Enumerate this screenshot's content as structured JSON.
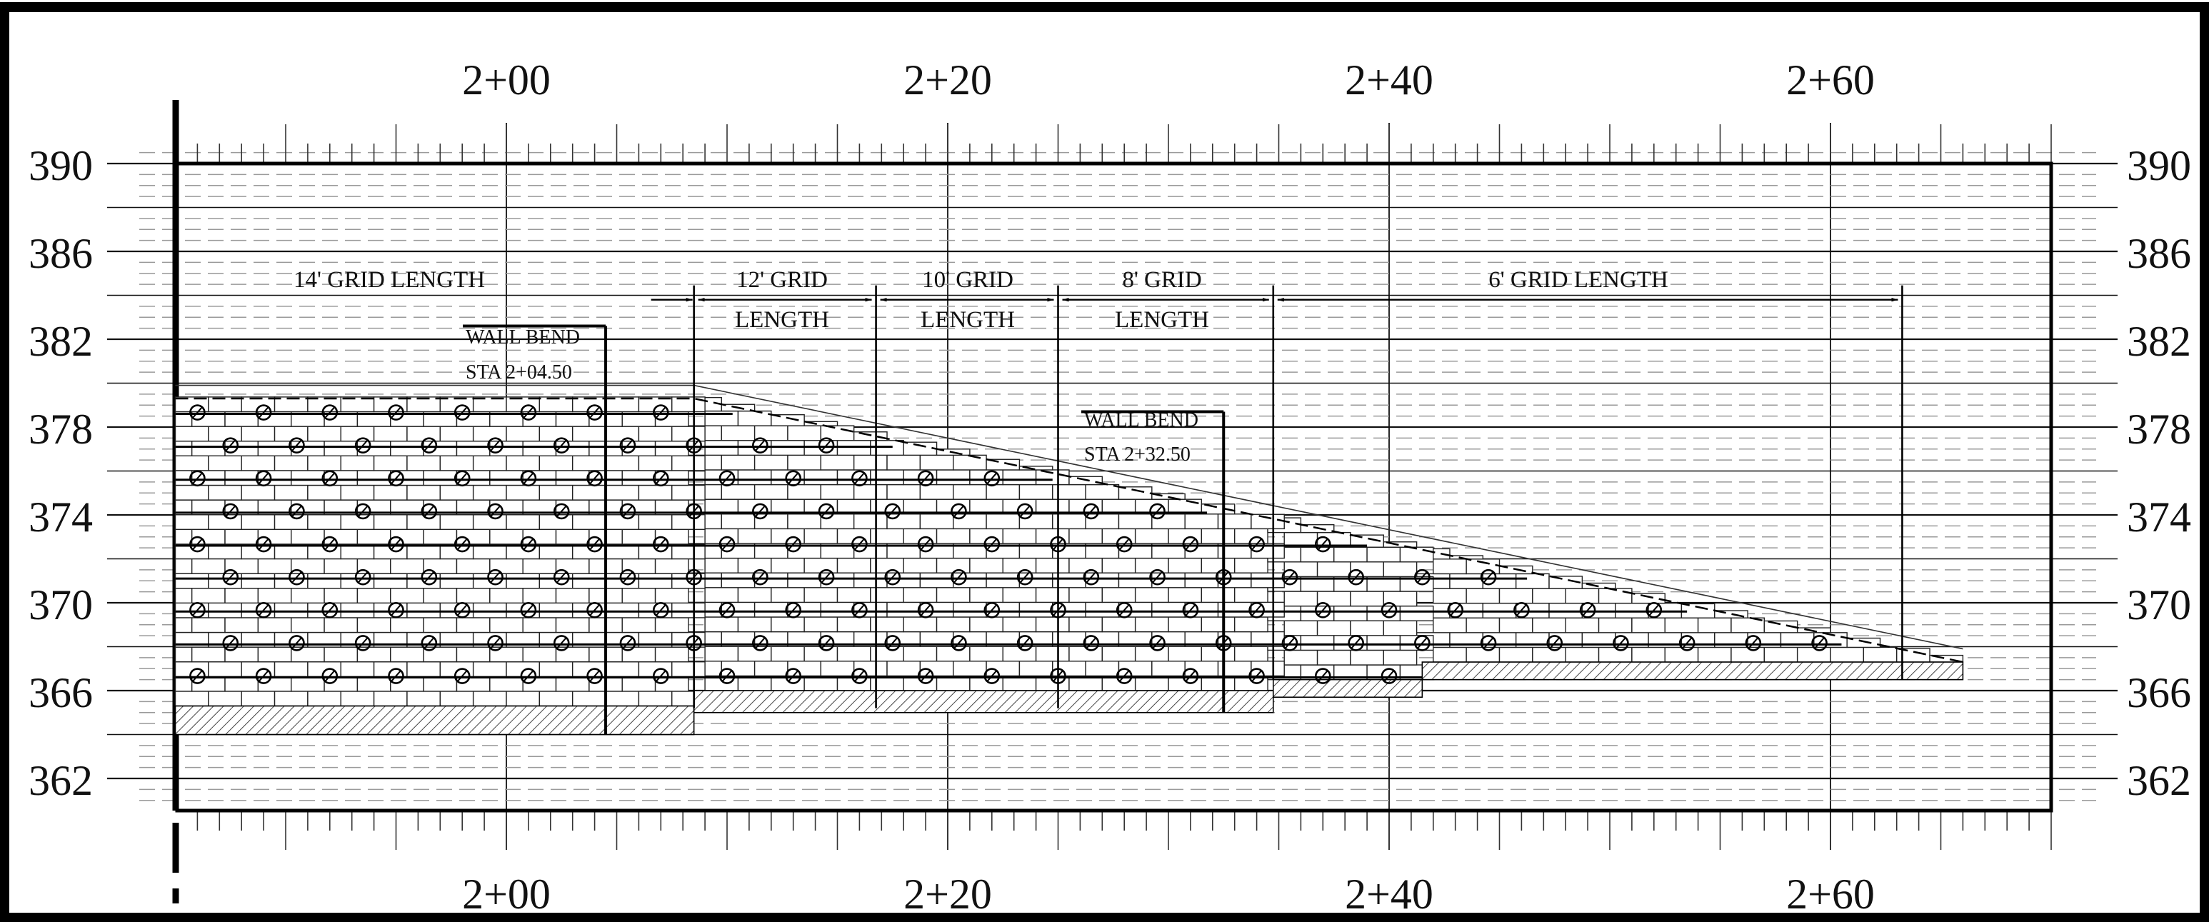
{
  "drawing": {
    "type": "retaining wall elevation (grid reinforcement layout)",
    "elevation_labels": [
      "390",
      "386",
      "382",
      "378",
      "374",
      "370",
      "366",
      "362"
    ],
    "elevations": [
      390,
      386,
      382,
      378,
      374,
      370,
      366,
      362
    ],
    "station_labels": [
      "2+00",
      "2+20",
      "2+40",
      "2+60"
    ],
    "stations_ft": [
      200,
      220,
      240,
      260
    ],
    "grid_zones": [
      {
        "line1": "14' GRID LENGTH",
        "line2": "",
        "sta_start": 185,
        "sta_end": 208.5
      },
      {
        "line1": "12' GRID",
        "line2": "LENGTH",
        "sta_start": 208.5,
        "sta_end": 216.75
      },
      {
        "line1": "10' GRID",
        "line2": "LENGTH",
        "sta_start": 216.75,
        "sta_end": 225
      },
      {
        "line1": "8' GRID",
        "line2": "LENGTH",
        "sta_start": 225,
        "sta_end": 234.75
      },
      {
        "line1": "6' GRID LENGTH",
        "line2": "",
        "sta_start": 234.75,
        "sta_end": 263.25
      }
    ],
    "wall_bends": [
      {
        "title": "WALL BEND",
        "station": "STA 2+04.50",
        "sta": 204.5,
        "label_top_el": 382,
        "base_el": 364
      },
      {
        "title": "WALL BEND",
        "station": "STA 2+32.50",
        "sta": 232.5,
        "label_top_el": 377,
        "base_el": 365
      }
    ],
    "wall_top_profile": [
      [
        185,
        379.3
      ],
      [
        208.5,
        379.3
      ],
      [
        266,
        367.3
      ]
    ],
    "leveling_pads": [
      {
        "sta_start": 185,
        "sta_end": 208.5,
        "top_el": 365.3,
        "bottom_el": 364.0
      },
      {
        "sta_start": 208.5,
        "sta_end": 234.75,
        "top_el": 366.0,
        "bottom_el": 365.0
      },
      {
        "sta_start": 234.75,
        "sta_end": 241.5,
        "top_el": 366.5,
        "bottom_el": 365.7
      },
      {
        "sta_start": 241.5,
        "sta_end": 266,
        "top_el": 367.3,
        "bottom_el": 366.5
      }
    ],
    "grid_rows_el": [
      378.6,
      377.1,
      375.6,
      374.1,
      372.6,
      371.1,
      369.6,
      368.1,
      366.6,
      365.1
    ]
  }
}
